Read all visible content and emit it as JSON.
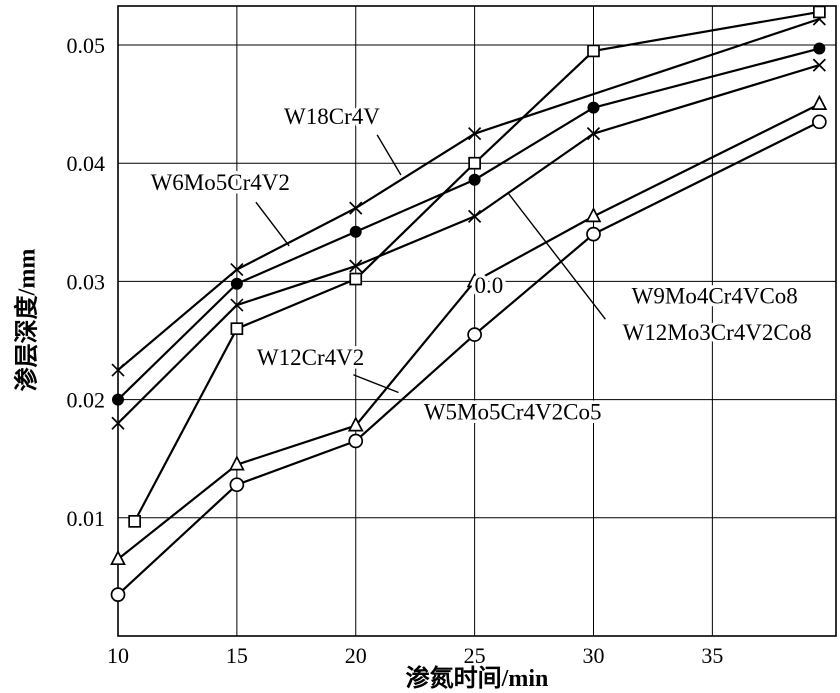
{
  "colors": {
    "line": "#000000",
    "background": "#ffffff"
  },
  "chart_data": {
    "type": "line",
    "title": "",
    "xlabel": "渗氮时间/min",
    "ylabel": "渗层深度/mm",
    "xlim": [
      10,
      40.2
    ],
    "ylim": [
      0,
      0.0533
    ],
    "xticks": [
      10,
      15,
      20,
      25,
      30,
      35
    ],
    "yticks": [
      0.01,
      0.02,
      0.03,
      0.04,
      0.05
    ],
    "ytick_labels": [
      "0.01",
      "0.02",
      "0.03",
      "0.04",
      "0.05"
    ],
    "grid": true,
    "legend": "inline-annotations",
    "series": [
      {
        "name": "W18Cr4V",
        "marker": "cross",
        "x": [
          10,
          15,
          20,
          25,
          39.5
        ],
        "y": [
          0.0225,
          0.031,
          0.0362,
          0.0425,
          0.0522
        ]
      },
      {
        "name": "W6Mo5Cr4V2",
        "marker": "filled-circle",
        "x": [
          10,
          15,
          20,
          25,
          30,
          39.5
        ],
        "y": [
          0.02,
          0.0298,
          0.0342,
          0.0386,
          0.0447,
          0.0497
        ]
      },
      {
        "name": "W12Mo3Cr4V2Co8",
        "marker": "cross",
        "x": [
          10,
          15,
          20,
          25,
          30,
          39.5
        ],
        "y": [
          0.018,
          0.028,
          0.0313,
          0.0355,
          0.0425,
          0.0483
        ]
      },
      {
        "name": "W9Mo4Cr4VCo8",
        "marker": "open-square",
        "x": [
          10.7,
          15,
          20,
          25,
          30,
          39.5
        ],
        "y": [
          0.0097,
          0.026,
          0.0302,
          0.04,
          0.0495,
          0.0528
        ]
      },
      {
        "name": "W12Cr4V2",
        "marker": "open-triangle",
        "x": [
          10,
          15,
          20,
          25,
          30,
          39.5
        ],
        "y": [
          0.0065,
          0.0145,
          0.0178,
          0.03,
          0.0355,
          0.045
        ]
      },
      {
        "name": "W5Mo5Cr4V2Co5",
        "marker": "open-circle",
        "x": [
          10,
          15,
          20,
          25,
          30,
          39.5
        ],
        "y": [
          0.0035,
          0.0128,
          0.0165,
          0.0255,
          0.034,
          0.0435
        ]
      }
    ],
    "annotations": [
      {
        "text": "W18Cr4V",
        "x": 19.0,
        "y": 0.044,
        "leader": [
          20.9,
          0.0424,
          21.9,
          0.039
        ]
      },
      {
        "text": "W6Mo5Cr4V2",
        "x": 14.3,
        "y": 0.0384,
        "leader": [
          15.8,
          0.0367,
          17.2,
          0.033
        ]
      },
      {
        "text": "W12Mo3Cr4V2Co8",
        "x": 35.2,
        "y": 0.0257,
        "leader": [
          30.5,
          0.0268,
          26.4,
          0.0375
        ]
      },
      {
        "text": "W9Mo4Cr4VCo8",
        "x": 35.1,
        "y": 0.0288
      },
      {
        "text": "W12Cr4V2",
        "x": 18.1,
        "y": 0.0236,
        "leader": [
          19.9,
          0.0221,
          21.8,
          0.0206
        ]
      },
      {
        "text": "W5Mo5Cr4V2Co5",
        "x": 26.6,
        "y": 0.019
      },
      {
        "text": "0.0",
        "x": 25.6,
        "y": 0.0297
      }
    ]
  }
}
